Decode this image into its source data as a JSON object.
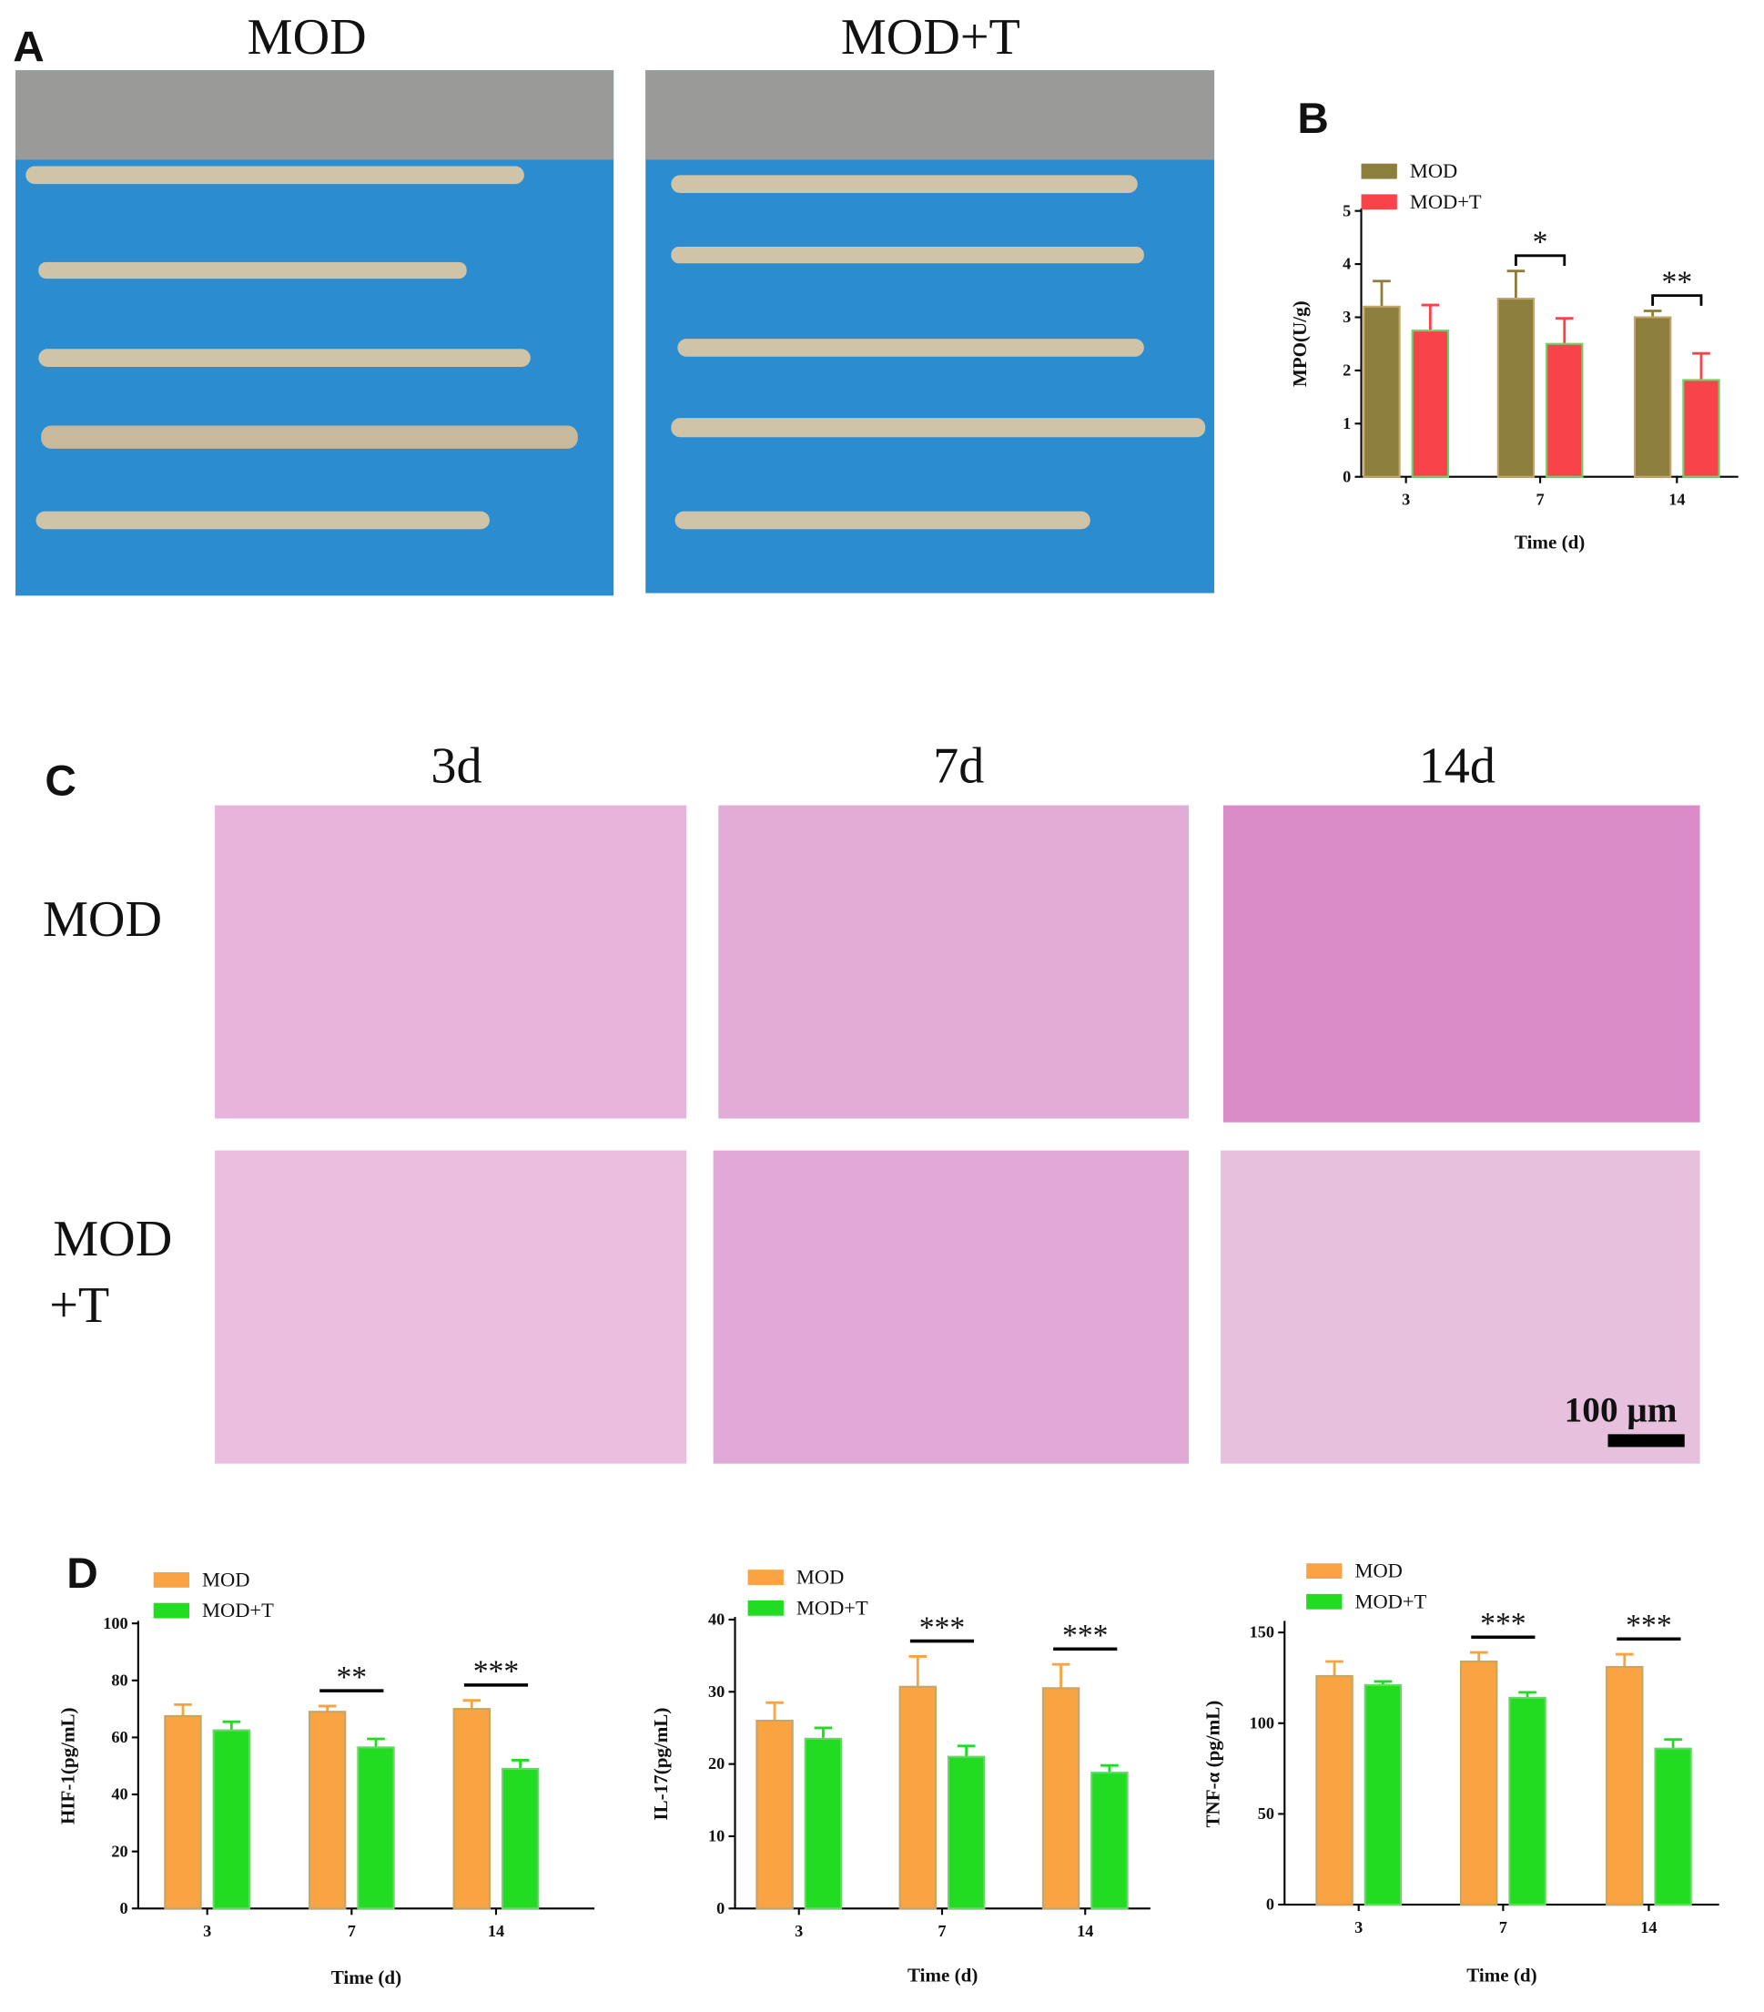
{
  "panels": {
    "a": {
      "label": "A",
      "titles": [
        "MOD",
        "MOD+T"
      ]
    },
    "b": {
      "label": "B"
    },
    "c": {
      "label": "C",
      "columns": [
        "3d",
        "7d",
        "14d"
      ],
      "rows": [
        "MOD",
        "MOD",
        "+T"
      ],
      "scale_bar": "100 μm"
    },
    "d": {
      "label": "D"
    }
  },
  "chart_data": [
    {
      "type": "bar",
      "y_label": "MPO(U/g)",
      "x_label": "Time (d)",
      "categories": [
        "3",
        "7",
        "14"
      ],
      "ylim": [
        0,
        5
      ],
      "yticks": [
        0,
        1,
        2,
        3,
        4,
        5
      ],
      "series": [
        {
          "name": "MOD",
          "color": "#8c7e3c",
          "values": [
            3.2,
            3.35,
            3.0
          ],
          "errors": [
            0.48,
            0.52,
            0.12
          ]
        },
        {
          "name": "MOD+T",
          "color": "#f8434a",
          "values": [
            2.75,
            2.5,
            1.82
          ],
          "errors": [
            0.48,
            0.48,
            0.5
          ]
        }
      ],
      "significance": [
        {
          "category": "7",
          "label": "*"
        },
        {
          "category": "14",
          "label": "**"
        }
      ]
    },
    {
      "type": "bar",
      "y_label": "HIF-1(pg/mL)",
      "x_label": "Time (d)",
      "categories": [
        "3",
        "7",
        "14"
      ],
      "ylim": [
        0,
        100
      ],
      "yticks": [
        0,
        20,
        40,
        60,
        80,
        100
      ],
      "series": [
        {
          "name": "MOD",
          "color": "#f9a343",
          "values": [
            67.5,
            69,
            70
          ],
          "errors": [
            4,
            2,
            3
          ]
        },
        {
          "name": "MOD+T",
          "color": "#22dc22",
          "values": [
            62.5,
            56.5,
            49
          ],
          "errors": [
            3,
            3,
            3
          ]
        }
      ],
      "significance": [
        {
          "category": "7",
          "label": "**"
        },
        {
          "category": "14",
          "label": "***"
        }
      ]
    },
    {
      "type": "bar",
      "y_label": "IL-17(pg/mL)",
      "x_label": "Time (d)",
      "categories": [
        "3",
        "7",
        "14"
      ],
      "ylim": [
        0,
        40
      ],
      "yticks": [
        0,
        10,
        20,
        30,
        40
      ],
      "series": [
        {
          "name": "MOD",
          "color": "#f9a343",
          "values": [
            26,
            30.7,
            30.5
          ],
          "errors": [
            2.5,
            4.2,
            3.3
          ]
        },
        {
          "name": "MOD+T",
          "color": "#22dc22",
          "values": [
            23.5,
            21,
            18.8
          ],
          "errors": [
            1.5,
            1.5,
            1
          ]
        }
      ],
      "significance": [
        {
          "category": "7",
          "label": "***"
        },
        {
          "category": "14",
          "label": "***"
        }
      ]
    },
    {
      "type": "bar",
      "y_label": "TNF-α (pg/mL)",
      "x_label": "Time (d)",
      "categories": [
        "3",
        "7",
        "14"
      ],
      "ylim": [
        0,
        155
      ],
      "yticks": [
        0,
        50,
        100,
        150
      ],
      "series": [
        {
          "name": "MOD",
          "color": "#f9a343",
          "values": [
            126,
            134,
            131
          ],
          "errors": [
            8,
            5,
            7
          ]
        },
        {
          "name": "MOD+T",
          "color": "#22dc22",
          "values": [
            121,
            114,
            86
          ],
          "errors": [
            2,
            3,
            5
          ]
        }
      ],
      "significance": [
        {
          "category": "7",
          "label": "***"
        },
        {
          "category": "14",
          "label": "***"
        }
      ]
    }
  ]
}
